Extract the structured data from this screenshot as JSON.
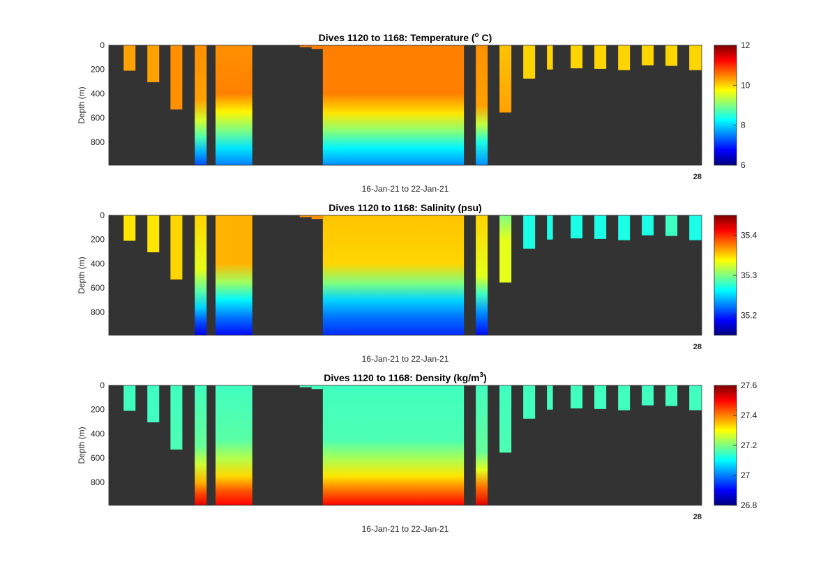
{
  "chart_data": [
    {
      "type": "heatmap",
      "title_text": "Dives 1120 to 1168: Temperature (",
      "title_sup": "o",
      "title_tail": " C)",
      "xlabel": "16-Jan-21 to 22-Jan-21",
      "ylabel": "Depth (m)",
      "x_end_label": "28",
      "yticks": [
        "0",
        "200",
        "400",
        "600",
        "800"
      ],
      "ytick_values": [
        0,
        200,
        400,
        600,
        800
      ],
      "ylim": [
        0,
        990
      ],
      "clim": [
        6,
        12
      ],
      "colorbar_ticks": [
        "6",
        "8",
        "10",
        "12"
      ],
      "colorbar_tick_values": [
        6,
        8,
        10,
        12
      ],
      "colormap": "jet",
      "background_color": "#333333",
      "profiles": [
        {
          "x": 0.025,
          "w": 0.02,
          "depth": 210,
          "stops": [
            [
              0,
              10.3
            ],
            [
              210,
              10.3
            ]
          ]
        },
        {
          "x": 0.065,
          "w": 0.02,
          "depth": 305,
          "stops": [
            [
              0,
              10.3
            ],
            [
              305,
              10.3
            ]
          ]
        },
        {
          "x": 0.104,
          "w": 0.02,
          "depth": 530,
          "stops": [
            [
              0,
              10.4
            ],
            [
              530,
              10.4
            ]
          ]
        },
        {
          "x": 0.145,
          "w": 0.02,
          "depth": 990,
          "stops": [
            [
              0,
              10.4
            ],
            [
              450,
              10.3
            ],
            [
              620,
              9.5
            ],
            [
              760,
              8.7
            ],
            [
              880,
              7.8
            ],
            [
              990,
              7.2
            ]
          ]
        },
        {
          "x": 0.18,
          "w": 0.062,
          "depth": 990,
          "stops": [
            [
              0,
              10.4
            ],
            [
              400,
              10.5
            ],
            [
              550,
              9.8
            ],
            [
              700,
              9.0
            ],
            [
              850,
              8.1
            ],
            [
              990,
              7.5
            ]
          ]
        },
        {
          "x": 0.322,
          "w": 0.02,
          "depth": 15,
          "stops": [
            [
              0,
              10.5
            ],
            [
              15,
              10.5
            ]
          ]
        },
        {
          "x": 0.342,
          "w": 0.019,
          "depth": 30,
          "stops": [
            [
              0,
              10.5
            ],
            [
              30,
              10.5
            ]
          ]
        },
        {
          "x": 0.361,
          "w": 0.238,
          "depth": 990,
          "stops": [
            [
              0,
              10.5
            ],
            [
              400,
              10.5
            ],
            [
              560,
              9.9
            ],
            [
              700,
              9.1
            ],
            [
              850,
              8.2
            ],
            [
              990,
              7.6
            ]
          ]
        },
        {
          "x": 0.619,
          "w": 0.02,
          "depth": 990,
          "stops": [
            [
              0,
              10.4
            ],
            [
              500,
              10.3
            ],
            [
              650,
              9.4
            ],
            [
              800,
              8.4
            ],
            [
              990,
              7.6
            ]
          ]
        },
        {
          "x": 0.659,
          "w": 0.02,
          "depth": 555,
          "stops": [
            [
              0,
              10.1
            ],
            [
              555,
              10.3
            ]
          ]
        },
        {
          "x": 0.699,
          "w": 0.02,
          "depth": 275,
          "stops": [
            [
              0,
              10.0
            ],
            [
              275,
              10.0
            ]
          ]
        },
        {
          "x": 0.739,
          "w": 0.01,
          "depth": 200,
          "stops": [
            [
              0,
              10.0
            ],
            [
              200,
              10.0
            ]
          ]
        },
        {
          "x": 0.779,
          "w": 0.02,
          "depth": 190,
          "stops": [
            [
              0,
              10.0
            ],
            [
              190,
              10.0
            ]
          ]
        },
        {
          "x": 0.819,
          "w": 0.02,
          "depth": 195,
          "stops": [
            [
              0,
              10.0
            ],
            [
              195,
              10.0
            ]
          ]
        },
        {
          "x": 0.859,
          "w": 0.02,
          "depth": 205,
          "stops": [
            [
              0,
              10.0
            ],
            [
              205,
              10.0
            ]
          ]
        },
        {
          "x": 0.899,
          "w": 0.02,
          "depth": 165,
          "stops": [
            [
              0,
              10.0
            ],
            [
              165,
              10.0
            ]
          ]
        },
        {
          "x": 0.939,
          "w": 0.02,
          "depth": 170,
          "stops": [
            [
              0,
              10.0
            ],
            [
              170,
              10.0
            ]
          ]
        },
        {
          "x": 0.979,
          "w": 0.021,
          "depth": 205,
          "stops": [
            [
              0,
              10.0
            ],
            [
              205,
              10.0
            ]
          ]
        }
      ]
    },
    {
      "type": "heatmap",
      "title_text": "Dives 1120 to 1168: Salinity (psu)",
      "title_sup": "",
      "title_tail": "",
      "xlabel": "16-Jan-21 to 22-Jan-21",
      "ylabel": "Depth (m)",
      "x_end_label": "28",
      "yticks": [
        "0",
        "200",
        "400",
        "600",
        "800"
      ],
      "ytick_values": [
        0,
        200,
        400,
        600,
        800
      ],
      "ylim": [
        0,
        990
      ],
      "clim": [
        35.15,
        35.45
      ],
      "colorbar_ticks": [
        "35.2",
        "35.3",
        "35.4"
      ],
      "colorbar_tick_values": [
        35.2,
        35.3,
        35.4
      ],
      "colormap": "jet",
      "background_color": "#333333",
      "profiles": [
        {
          "x": 0.025,
          "w": 0.02,
          "depth": 210,
          "stops": [
            [
              0,
              35.345
            ],
            [
              210,
              35.345
            ]
          ]
        },
        {
          "x": 0.065,
          "w": 0.02,
          "depth": 305,
          "stops": [
            [
              0,
              35.345
            ],
            [
              305,
              35.345
            ]
          ]
        },
        {
          "x": 0.104,
          "w": 0.02,
          "depth": 530,
          "stops": [
            [
              0,
              35.35
            ],
            [
              530,
              35.35
            ]
          ]
        },
        {
          "x": 0.145,
          "w": 0.02,
          "depth": 990,
          "stops": [
            [
              0,
              35.35
            ],
            [
              450,
              35.33
            ],
            [
              620,
              35.29
            ],
            [
              760,
              35.25
            ],
            [
              880,
              35.21
            ],
            [
              990,
              35.18
            ]
          ]
        },
        {
          "x": 0.18,
          "w": 0.062,
          "depth": 990,
          "stops": [
            [
              0,
              35.36
            ],
            [
              400,
              35.36
            ],
            [
              550,
              35.31
            ],
            [
              700,
              35.26
            ],
            [
              850,
              35.22
            ],
            [
              990,
              35.19
            ]
          ]
        },
        {
          "x": 0.322,
          "w": 0.02,
          "depth": 15,
          "stops": [
            [
              0,
              35.37
            ],
            [
              15,
              35.37
            ]
          ]
        },
        {
          "x": 0.342,
          "w": 0.019,
          "depth": 30,
          "stops": [
            [
              0,
              35.37
            ],
            [
              30,
              35.37
            ]
          ]
        },
        {
          "x": 0.361,
          "w": 0.238,
          "depth": 990,
          "stops": [
            [
              0,
              35.355
            ],
            [
              400,
              35.35
            ],
            [
              560,
              35.3
            ],
            [
              700,
              35.25
            ],
            [
              850,
              35.22
            ],
            [
              990,
              35.2
            ]
          ]
        },
        {
          "x": 0.619,
          "w": 0.02,
          "depth": 990,
          "stops": [
            [
              0,
              35.35
            ],
            [
              500,
              35.33
            ],
            [
              650,
              35.28
            ],
            [
              800,
              35.23
            ],
            [
              990,
              35.19
            ]
          ]
        },
        {
          "x": 0.659,
          "w": 0.02,
          "depth": 555,
          "stops": [
            [
              0,
              35.3
            ],
            [
              200,
              35.33
            ],
            [
              555,
              35.33
            ]
          ]
        },
        {
          "x": 0.699,
          "w": 0.02,
          "depth": 275,
          "stops": [
            [
              0,
              35.27
            ],
            [
              275,
              35.27
            ]
          ]
        },
        {
          "x": 0.739,
          "w": 0.01,
          "depth": 200,
          "stops": [
            [
              0,
              35.27
            ],
            [
              200,
              35.27
            ]
          ]
        },
        {
          "x": 0.779,
          "w": 0.02,
          "depth": 190,
          "stops": [
            [
              0,
              35.27
            ],
            [
              190,
              35.27
            ]
          ]
        },
        {
          "x": 0.819,
          "w": 0.02,
          "depth": 195,
          "stops": [
            [
              0,
              35.27
            ],
            [
              195,
              35.27
            ]
          ]
        },
        {
          "x": 0.859,
          "w": 0.02,
          "depth": 205,
          "stops": [
            [
              0,
              35.27
            ],
            [
              205,
              35.27
            ]
          ]
        },
        {
          "x": 0.899,
          "w": 0.02,
          "depth": 165,
          "stops": [
            [
              0,
              35.27
            ],
            [
              165,
              35.27
            ]
          ]
        },
        {
          "x": 0.939,
          "w": 0.02,
          "depth": 170,
          "stops": [
            [
              0,
              35.28
            ],
            [
              170,
              35.28
            ]
          ]
        },
        {
          "x": 0.979,
          "w": 0.021,
          "depth": 205,
          "stops": [
            [
              0,
              35.27
            ],
            [
              205,
              35.27
            ]
          ]
        }
      ]
    },
    {
      "type": "heatmap",
      "title_text": "Dives 1120 to 1168: Density (kg/m",
      "title_sup": "3",
      "title_tail": ")",
      "xlabel": "16-Jan-21 to 22-Jan-21",
      "ylabel": "Depth (m)",
      "x_end_label": "28",
      "yticks": [
        "0",
        "200",
        "400",
        "600",
        "800"
      ],
      "ytick_values": [
        0,
        200,
        400,
        600,
        800
      ],
      "ylim": [
        0,
        990
      ],
      "clim": [
        26.8,
        27.6
      ],
      "colorbar_ticks": [
        "26.8",
        "27",
        "27.2",
        "27.4",
        "27.6"
      ],
      "colorbar_tick_values": [
        26.8,
        27.0,
        27.2,
        27.4,
        27.6
      ],
      "colormap": "jet",
      "background_color": "#333333",
      "profiles": [
        {
          "x": 0.025,
          "w": 0.02,
          "depth": 210,
          "stops": [
            [
              0,
              27.15
            ],
            [
              210,
              27.15
            ]
          ]
        },
        {
          "x": 0.065,
          "w": 0.02,
          "depth": 305,
          "stops": [
            [
              0,
              27.15
            ],
            [
              305,
              27.15
            ]
          ]
        },
        {
          "x": 0.104,
          "w": 0.02,
          "depth": 530,
          "stops": [
            [
              0,
              27.15
            ],
            [
              530,
              27.16
            ]
          ]
        },
        {
          "x": 0.145,
          "w": 0.02,
          "depth": 990,
          "stops": [
            [
              0,
              27.15
            ],
            [
              500,
              27.18
            ],
            [
              650,
              27.26
            ],
            [
              800,
              27.36
            ],
            [
              900,
              27.45
            ],
            [
              990,
              27.52
            ]
          ]
        },
        {
          "x": 0.18,
          "w": 0.062,
          "depth": 990,
          "stops": [
            [
              0,
              27.15
            ],
            [
              450,
              27.17
            ],
            [
              600,
              27.24
            ],
            [
              750,
              27.33
            ],
            [
              880,
              27.44
            ],
            [
              990,
              27.5
            ]
          ]
        },
        {
          "x": 0.322,
          "w": 0.02,
          "depth": 15,
          "stops": [
            [
              0,
              27.15
            ],
            [
              15,
              27.15
            ]
          ]
        },
        {
          "x": 0.342,
          "w": 0.019,
          "depth": 30,
          "stops": [
            [
              0,
              27.15
            ],
            [
              30,
              27.15
            ]
          ]
        },
        {
          "x": 0.361,
          "w": 0.238,
          "depth": 990,
          "stops": [
            [
              0,
              27.15
            ],
            [
              450,
              27.16
            ],
            [
              600,
              27.23
            ],
            [
              750,
              27.32
            ],
            [
              880,
              27.42
            ],
            [
              990,
              27.5
            ]
          ]
        },
        {
          "x": 0.619,
          "w": 0.02,
          "depth": 990,
          "stops": [
            [
              0,
              27.15
            ],
            [
              550,
              27.18
            ],
            [
              700,
              27.28
            ],
            [
              850,
              27.42
            ],
            [
              990,
              27.52
            ]
          ]
        },
        {
          "x": 0.659,
          "w": 0.02,
          "depth": 555,
          "stops": [
            [
              0,
              27.15
            ],
            [
              555,
              27.16
            ]
          ]
        },
        {
          "x": 0.699,
          "w": 0.02,
          "depth": 275,
          "stops": [
            [
              0,
              27.15
            ],
            [
              275,
              27.15
            ]
          ]
        },
        {
          "x": 0.739,
          "w": 0.01,
          "depth": 200,
          "stops": [
            [
              0,
              27.15
            ],
            [
              200,
              27.15
            ]
          ]
        },
        {
          "x": 0.779,
          "w": 0.02,
          "depth": 190,
          "stops": [
            [
              0,
              27.15
            ],
            [
              190,
              27.15
            ]
          ]
        },
        {
          "x": 0.819,
          "w": 0.02,
          "depth": 195,
          "stops": [
            [
              0,
              27.15
            ],
            [
              195,
              27.15
            ]
          ]
        },
        {
          "x": 0.859,
          "w": 0.02,
          "depth": 205,
          "stops": [
            [
              0,
              27.15
            ],
            [
              205,
              27.15
            ]
          ]
        },
        {
          "x": 0.899,
          "w": 0.02,
          "depth": 165,
          "stops": [
            [
              0,
              27.15
            ],
            [
              165,
              27.15
            ]
          ]
        },
        {
          "x": 0.939,
          "w": 0.02,
          "depth": 170,
          "stops": [
            [
              0,
              27.15
            ],
            [
              170,
              27.15
            ]
          ]
        },
        {
          "x": 0.979,
          "w": 0.021,
          "depth": 205,
          "stops": [
            [
              0,
              27.15
            ],
            [
              205,
              27.15
            ]
          ]
        }
      ]
    }
  ]
}
